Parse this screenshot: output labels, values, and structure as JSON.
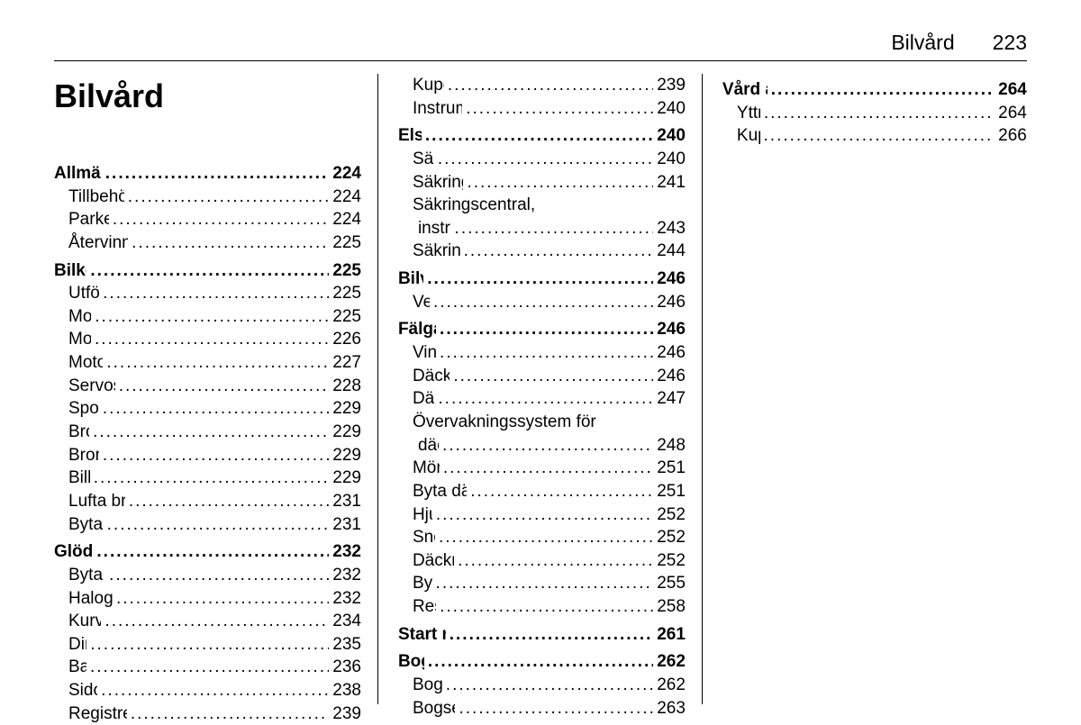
{
  "header": {
    "title": "Bilvård",
    "page": "223"
  },
  "chapter_title": "Bilvård",
  "col1": [
    {
      "type": "section",
      "label": "Allmän information",
      "page": "224"
    },
    {
      "type": "sub",
      "label": "Tillbehör och bilmodifiering",
      "page": "224"
    },
    {
      "type": "sub",
      "label": "Parkering av bilen",
      "page": "224"
    },
    {
      "type": "sub",
      "label": "Återvinning efter bilens livstid",
      "page": "225"
    },
    {
      "type": "section",
      "label": "Bilkontroller",
      "page": "225"
    },
    {
      "type": "sub",
      "label": "Utföra arbete",
      "page": "225"
    },
    {
      "type": "sub",
      "label": "Motorhuv",
      "page": "225"
    },
    {
      "type": "sub",
      "label": "Motorolja",
      "page": "226"
    },
    {
      "type": "sub",
      "label": "Motorkylvätska",
      "page": "227"
    },
    {
      "type": "sub",
      "label": "Servostyrningsvätska",
      "page": "228"
    },
    {
      "type": "sub",
      "label": "Spolarvätska",
      "page": "229"
    },
    {
      "type": "sub",
      "label": "Bromsar",
      "page": "229"
    },
    {
      "type": "sub",
      "label": "Bromsvätska",
      "page": "229"
    },
    {
      "type": "sub",
      "label": "Bilbatteri",
      "page": "229"
    },
    {
      "type": "sub",
      "label": "Lufta bränslesystem, diesel",
      "page": "231"
    },
    {
      "type": "sub",
      "label": "Byta torkarblad",
      "page": "231"
    },
    {
      "type": "section",
      "label": "Glödlampsbyte",
      "page": "232"
    },
    {
      "type": "sub",
      "label": "Byta glödlampor",
      "page": "232"
    },
    {
      "type": "sub",
      "label": "Halogenstrålkastare",
      "page": "232"
    },
    {
      "type": "sub",
      "label": "Kurvbelysning",
      "page": "234"
    },
    {
      "type": "sub",
      "label": "Dimljus",
      "page": "235"
    },
    {
      "type": "sub",
      "label": "Bakljus",
      "page": "236"
    },
    {
      "type": "sub",
      "label": "Sidoblinkers",
      "page": "238"
    },
    {
      "type": "sub",
      "label": "Registreringsskyltsbelysning",
      "page": "239"
    }
  ],
  "col2": [
    {
      "type": "sub",
      "label": "Kupébelysning",
      "page": "239"
    },
    {
      "type": "sub",
      "label": "Instrumentpanelbelysning",
      "page": "240"
    },
    {
      "type": "section",
      "label": "Elsystem",
      "page": "240"
    },
    {
      "type": "sub",
      "label": "Säkringar",
      "page": "240"
    },
    {
      "type": "sub",
      "label": "Säkringscentral, motorrum",
      "page": "241"
    },
    {
      "type": "sub",
      "label": "Säkringscentral,",
      "page": "",
      "nolead": true
    },
    {
      "type": "cont",
      "label": "instrumentpanel",
      "page": "243"
    },
    {
      "type": "sub",
      "label": "Säkringscentral, lastrum",
      "page": "244"
    },
    {
      "type": "section",
      "label": "Bilverktyg",
      "page": "246"
    },
    {
      "type": "sub",
      "label": "Verktyg",
      "page": "246"
    },
    {
      "type": "section",
      "label": "Fälgar och däck",
      "page": "246"
    },
    {
      "type": "sub",
      "label": "Vinterdäck",
      "page": "246"
    },
    {
      "type": "sub",
      "label": "Däckbeteckningar",
      "page": "246"
    },
    {
      "type": "sub",
      "label": "Däcktryck",
      "page": "247"
    },
    {
      "type": "sub",
      "label": "Övervakningssystem för",
      "page": "",
      "nolead": true
    },
    {
      "type": "cont",
      "label": "däcktryck",
      "page": "248"
    },
    {
      "type": "sub",
      "label": "Mönsterdjup",
      "page": "251"
    },
    {
      "type": "sub",
      "label": "Byta däck och fälgdimension",
      "page": "251"
    },
    {
      "type": "sub",
      "label": "Hjulsidor",
      "page": "252"
    },
    {
      "type": "sub",
      "label": "Snökedjor",
      "page": "252"
    },
    {
      "type": "sub",
      "label": "Däckreparationssats",
      "page": "252"
    },
    {
      "type": "sub",
      "label": "Byta hjul",
      "page": "255"
    },
    {
      "type": "sub",
      "label": "Reservhjul",
      "page": "258"
    },
    {
      "type": "section",
      "label": "Start med startkablar",
      "page": "261"
    },
    {
      "type": "section",
      "label": "Bogsering",
      "page": "262"
    },
    {
      "type": "sub",
      "label": "Bogsera bilen",
      "page": "262"
    },
    {
      "type": "sub",
      "label": "Bogsera en annan bil",
      "page": "263"
    }
  ],
  "col3": [
    {
      "type": "section",
      "label": "Vård av utseendet",
      "page": "264"
    },
    {
      "type": "sub",
      "label": "Yttre vård",
      "page": "264"
    },
    {
      "type": "sub",
      "label": "Kupévård",
      "page": "266"
    }
  ]
}
